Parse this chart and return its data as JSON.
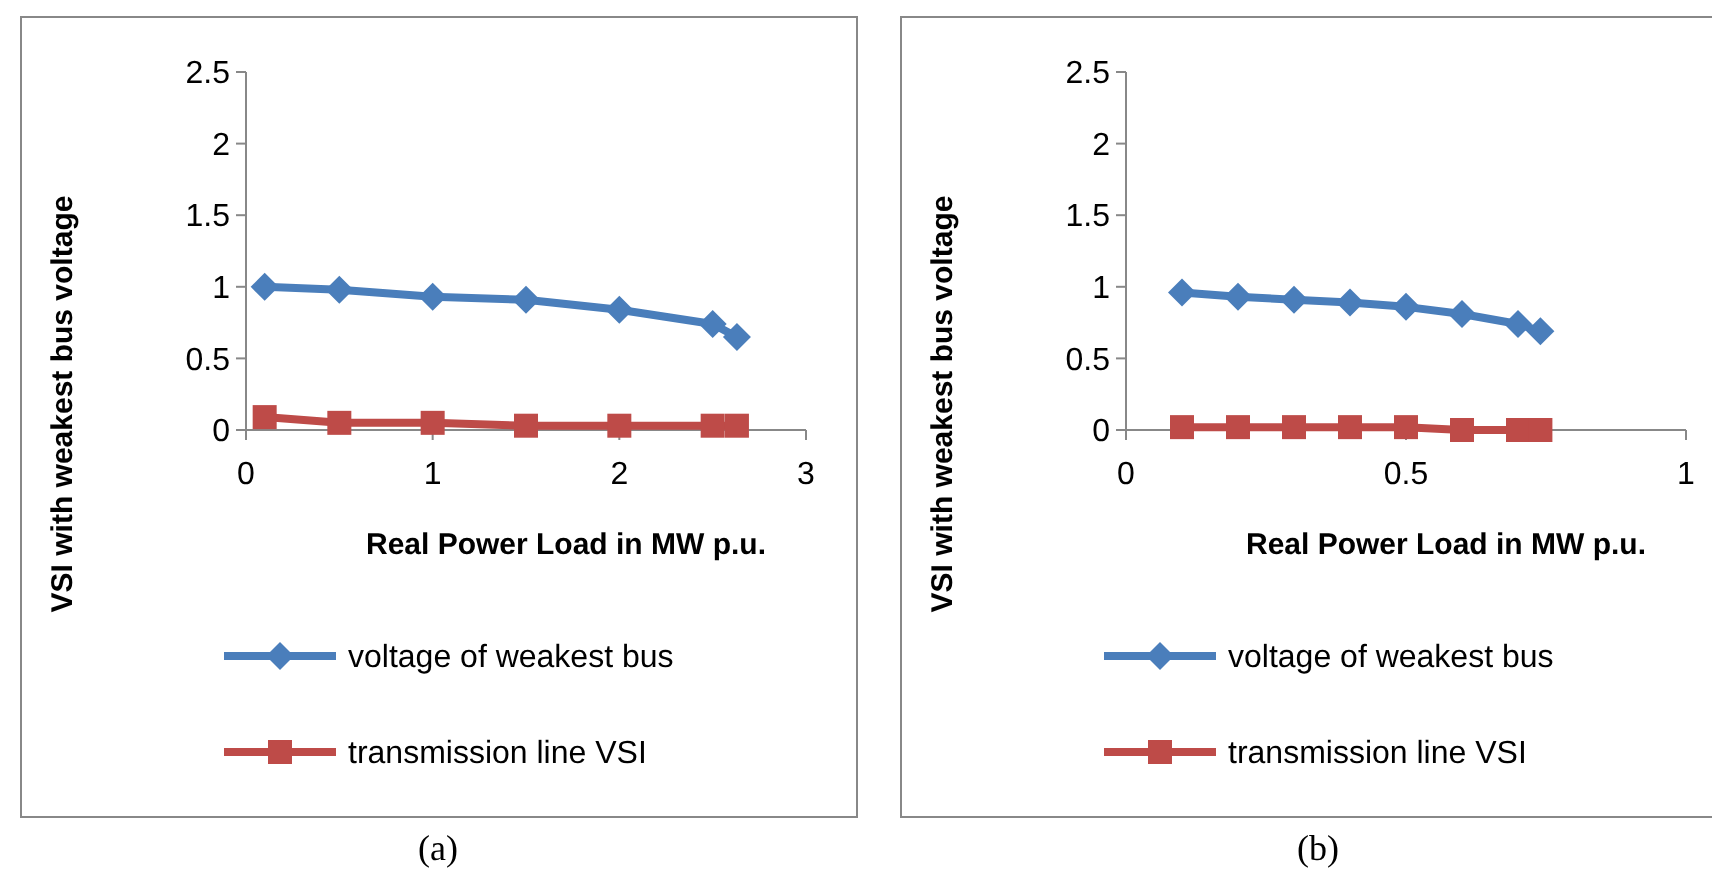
{
  "chart_data": [
    {
      "type": "line",
      "xlabel": "Real Power Load in MW p.u.",
      "ylabel": "VSI with weakest bus voltage",
      "xlim": [
        0,
        3
      ],
      "xticks": [
        0,
        1,
        2,
        3
      ],
      "ylim": [
        0,
        2.5
      ],
      "yticks": [
        0,
        0.5,
        1,
        1.5,
        2,
        2.5
      ],
      "legend": "bottom",
      "grid": false,
      "line_style": "solid",
      "annotations": [
        "(a)"
      ],
      "series": [
        {
          "name": "voltage of weakest bus",
          "color": "#4a7ebb",
          "marker": "diamond",
          "x": [
            0.1,
            0.5,
            1,
            1.5,
            2,
            2.5,
            2.63
          ],
          "values": [
            1.0,
            0.98,
            0.93,
            0.91,
            0.84,
            0.74,
            0.65
          ]
        },
        {
          "name": "transmission line VSI",
          "color": "#be4b48",
          "marker": "square",
          "x": [
            0.1,
            0.5,
            1,
            1.5,
            2,
            2.5,
            2.63
          ],
          "values": [
            0.09,
            0.05,
            0.05,
            0.03,
            0.03,
            0.03,
            0.03
          ]
        }
      ]
    },
    {
      "type": "line",
      "xlabel": "Real Power Load in MW p.u.",
      "ylabel": "VSI with weakest bus voltage",
      "xlim": [
        0,
        1
      ],
      "xticks": [
        0,
        0.5,
        1
      ],
      "ylim": [
        0,
        2.5
      ],
      "yticks": [
        0,
        0.5,
        1,
        1.5,
        2,
        2.5
      ],
      "legend": "bottom",
      "grid": false,
      "line_style": "solid",
      "annotations": [
        "(b)"
      ],
      "series": [
        {
          "name": "voltage of weakest bus",
          "color": "#4a7ebb",
          "marker": "diamond",
          "x": [
            0.1,
            0.2,
            0.3,
            0.4,
            0.5,
            0.6,
            0.7,
            0.74
          ],
          "values": [
            0.96,
            0.93,
            0.91,
            0.89,
            0.86,
            0.81,
            0.74,
            0.69
          ]
        },
        {
          "name": "transmission line VSI",
          "color": "#be4b48",
          "marker": "square",
          "x": [
            0.1,
            0.2,
            0.3,
            0.4,
            0.5,
            0.6,
            0.7,
            0.74
          ],
          "values": [
            0.02,
            0.02,
            0.02,
            0.02,
            0.02,
            0.0,
            0.0,
            0.0
          ]
        }
      ]
    }
  ]
}
